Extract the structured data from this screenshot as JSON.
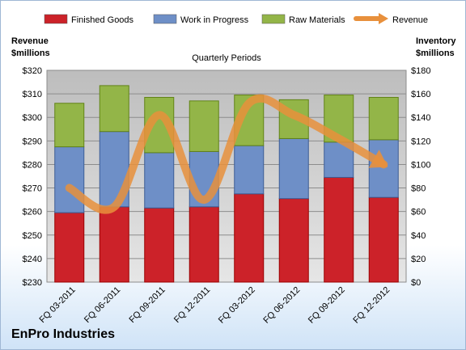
{
  "company": "EnPro Industries",
  "chart_data": {
    "type": "bar",
    "stacked": true,
    "title": "Quarterly Periods",
    "categories": [
      "FQ 03-2011",
      "FQ 06-2011",
      "FQ 09-2011",
      "FQ 12-2011",
      "FQ 03-2012",
      "FQ 06-2012",
      "FQ 09-2012",
      "FQ 12-2012"
    ],
    "left_axis": {
      "title_lines": [
        "Revenue",
        "$millions"
      ],
      "range": [
        230,
        320
      ],
      "ticks": [
        "$230",
        "$240",
        "$250",
        "$260",
        "$270",
        "$280",
        "$290",
        "$300",
        "$310",
        "$320"
      ]
    },
    "right_axis": {
      "title_lines": [
        "Inventory",
        "$millions"
      ],
      "range": [
        0,
        180
      ],
      "ticks": [
        "$0",
        "$20",
        "$40",
        "$60",
        "$80",
        "$100",
        "$120",
        "$140",
        "$160",
        "$180"
      ]
    },
    "grid": true,
    "legend_position": "top",
    "series": [
      {
        "name": "Finished Goods",
        "axis": "right",
        "color": "#cc2229",
        "values": [
          59,
          64,
          63,
          64,
          75,
          71,
          89,
          72
        ]
      },
      {
        "name": "Work in Progress",
        "axis": "right",
        "color": "#6e8fc7",
        "values": [
          56,
          64,
          47,
          47,
          41,
          51,
          30,
          49
        ]
      },
      {
        "name": "Raw Materials",
        "axis": "right",
        "color": "#93b548",
        "values": [
          37,
          39,
          47,
          43,
          43,
          33,
          40,
          36
        ]
      },
      {
        "name": "Revenue",
        "type": "line",
        "axis": "left",
        "color": "#e8903c",
        "values": [
          270,
          262,
          301,
          265,
          306,
          301,
          291,
          280
        ]
      }
    ]
  }
}
